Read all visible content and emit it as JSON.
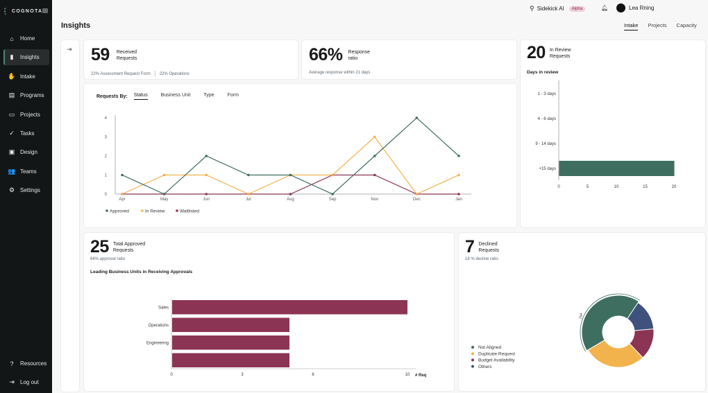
{
  "sidebar": {
    "brand": "COGNOTA",
    "items": [
      {
        "label": "Home",
        "icon": "home-icon",
        "glyph": "⌂"
      },
      {
        "label": "Insights",
        "icon": "bar-chart-icon",
        "glyph": "▮",
        "active": true
      },
      {
        "label": "Intake",
        "icon": "hand-icon",
        "glyph": "✋"
      },
      {
        "label": "Programs",
        "icon": "programs-icon",
        "glyph": "▤"
      },
      {
        "label": "Projects",
        "icon": "projects-icon",
        "glyph": "▭"
      },
      {
        "label": "Tasks",
        "icon": "check-circle-icon",
        "glyph": "✓"
      },
      {
        "label": "Design",
        "icon": "design-icon",
        "glyph": "▣"
      },
      {
        "label": "Teams",
        "icon": "teams-icon",
        "glyph": "👥"
      },
      {
        "label": "Settings",
        "icon": "gear-icon",
        "glyph": "⚙"
      }
    ],
    "bottom": [
      {
        "label": "Resources",
        "icon": "help-icon",
        "glyph": "?"
      },
      {
        "label": "Log out",
        "icon": "logout-icon",
        "glyph": "⇥"
      }
    ]
  },
  "topbar": {
    "sidekick_label": "Sidekick AI",
    "sidekick_badge": "Alpha",
    "user_name": "Lea Rning"
  },
  "page": {
    "title": "Insights",
    "tabs": [
      "Intake",
      "Projects",
      "Capacity"
    ],
    "active_tab": "Intake"
  },
  "received": {
    "value": "59",
    "label1": "Received",
    "label2": "Requests",
    "breakdown1": "22% Assessment Request Form",
    "breakdown2": "22% Operations"
  },
  "response": {
    "value": "66%",
    "label1": "Response",
    "label2": "ratio",
    "sub": "Average response within 21 days"
  },
  "in_review": {
    "value": "20",
    "label1": "In Review",
    "label2": "Requests",
    "chart_title": "Days in review"
  },
  "requests_by": {
    "label": "Requests By:",
    "tabs": [
      "Status",
      "Business Unit",
      "Type",
      "Form"
    ],
    "active_tab": "Status"
  },
  "approved": {
    "value": "25",
    "label1": "Total Approved",
    "label2": "Requests",
    "sub": "64% approval ratio",
    "chart_title": "Leading Business Units in Receiving Approvals"
  },
  "declined": {
    "value": "7",
    "label1": "Declined",
    "label2": "Requests",
    "sub": "18 % decline ratio"
  },
  "chart_data": [
    {
      "type": "line",
      "title": "Requests By: Status",
      "categories": [
        "Apr",
        "May",
        "Jun",
        "Jul",
        "Aug",
        "Sep",
        "Nov",
        "Dec",
        "Jan"
      ],
      "ylim": [
        0,
        4
      ],
      "yticks": [
        0,
        1,
        2,
        3,
        4
      ],
      "grid": false,
      "legend": "bottom-left",
      "series": [
        {
          "name": "Approved",
          "color": "#3e6e60",
          "values": [
            1,
            0,
            2,
            1,
            1,
            0,
            2,
            4,
            2
          ]
        },
        {
          "name": "In Review",
          "color": "#f2b24c",
          "values": [
            0,
            1,
            1,
            0,
            1,
            1,
            3,
            0,
            1
          ]
        },
        {
          "name": "Waitlisted",
          "color": "#8b3454",
          "values": [
            0,
            0,
            0,
            0,
            0,
            1,
            1,
            0,
            0
          ]
        }
      ]
    },
    {
      "type": "bar",
      "orientation": "horizontal",
      "title": "Days in review",
      "categories": [
        "1 - 3 days",
        "4 - 8 days",
        "9 - 14 days",
        "+15 days"
      ],
      "values": [
        0,
        0,
        0,
        20
      ],
      "xlim": [
        0,
        20
      ],
      "xticks": [
        0,
        5,
        10,
        15,
        20
      ],
      "color": "#3e6e60"
    },
    {
      "type": "bar",
      "orientation": "horizontal",
      "title": "Leading Business Units in Receiving Approvals",
      "categories": [
        "Sales",
        "Operations",
        "Engineering",
        ""
      ],
      "values": [
        10,
        5,
        5,
        5
      ],
      "xlim": [
        0,
        10
      ],
      "xticks": [
        0,
        3,
        6,
        10
      ],
      "xlabel": "# Req",
      "color": "#8b3454"
    },
    {
      "type": "pie",
      "donut": true,
      "title": "Declined Requests",
      "categories": [
        "Not Aligned",
        "Duplicate Request",
        "Budget Availability",
        "Others"
      ],
      "values": [
        3,
        2,
        1,
        1
      ],
      "colors": [
        "#3e6e60",
        "#f2b24c",
        "#8b3454",
        "#3f527e"
      ],
      "highlight_label": "3",
      "legend": "bottom-left"
    }
  ]
}
